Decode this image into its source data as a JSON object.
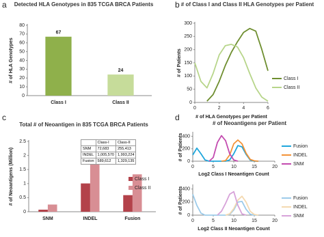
{
  "chart_data": [
    {
      "type": "bar",
      "panel": "a",
      "title": "Detected HLA Genotypes in 835 TCGA BRCA Patients",
      "ylabel": "# of HLA Genotypes",
      "categories": [
        "Class I",
        "Class II"
      ],
      "values": [
        67,
        24
      ],
      "colors": [
        "#8fb04b",
        "#c6dc9a"
      ],
      "data_labels": true,
      "ylim": [
        0,
        80
      ],
      "yticks": [
        0,
        10,
        20,
        30,
        40,
        50,
        60,
        70,
        80
      ]
    },
    {
      "type": "line",
      "panel": "b",
      "title": "# of Class I and Class II HLA Genotypes per Patient",
      "ylabel": "# of Patients",
      "xlabel": "# of HLA Genotypes per Patient",
      "x": [
        0,
        0.5,
        1,
        1.5,
        2,
        2.5,
        3,
        3.5,
        4,
        4.5,
        5,
        5.5,
        6
      ],
      "series": [
        {
          "name": "Class I",
          "color": "#6e8e2f",
          "values": [
            null,
            null,
            5,
            30,
            80,
            140,
            190,
            230,
            265,
            280,
            270,
            200,
            120
          ]
        },
        {
          "name": "Class II",
          "color": "#b7d58a",
          "values": [
            150,
            80,
            55,
            110,
            180,
            215,
            220,
            210,
            170,
            110,
            55,
            20,
            5
          ]
        }
      ],
      "xlim": [
        0,
        6
      ],
      "xticks": [
        0,
        2,
        4,
        6
      ],
      "ylim": [
        0,
        300
      ],
      "yticks": [
        0,
        50,
        100,
        150,
        200,
        250,
        300
      ],
      "legend": "right"
    },
    {
      "type": "groupbar",
      "panel": "c",
      "title": "Total # of Neoantigen in 835 TCGA BRCA Patients",
      "ylabel": "# of Neoantigens (Million)",
      "categories": [
        "SNM",
        "INDEL",
        "Fusion"
      ],
      "series": [
        {
          "name": "Class I",
          "color": "#b3424a",
          "values": [
            0.072683,
            1.00557,
            0.589612
          ]
        },
        {
          "name": "Class II",
          "color": "#d88e94",
          "values": [
            0.255413,
            1.993224,
            1.329135
          ]
        }
      ],
      "ylim": [
        0,
        2.5
      ],
      "yticks": [
        0,
        0.5,
        1,
        1.5,
        2,
        2.5
      ],
      "legend": "right",
      "table": {
        "columns": [
          "Class-I",
          "Class-II"
        ],
        "rows": [
          [
            "SNM",
            "72,683",
            "255,413"
          ],
          [
            "INDEL",
            "1,005,570",
            "1,993,224"
          ],
          [
            "Fusion",
            "589,612",
            "1,329,135"
          ]
        ]
      }
    },
    {
      "type": "line",
      "panel": "d",
      "title": "# of Neoantigens per Patient",
      "ylabel": "# of Patients",
      "xlabel": "Log2 Class I Neoantigen Count",
      "x": [
        0,
        1,
        2,
        3,
        4,
        5,
        6,
        7,
        8,
        9,
        10,
        11,
        12,
        13,
        14,
        15,
        16
      ],
      "series": [
        {
          "name": "Fusion",
          "color": "#1ea6dc",
          "values": [
            100,
            210,
            120,
            20,
            0,
            0,
            0,
            0,
            0,
            20,
            120,
            250,
            230,
            110,
            20,
            0,
            0
          ]
        },
        {
          "name": "INDEL",
          "color": "#f39237",
          "values": [
            null,
            null,
            null,
            null,
            null,
            null,
            null,
            0,
            10,
            100,
            280,
            340,
            280,
            130,
            30,
            5,
            0
          ]
        },
        {
          "name": "SNM",
          "color": "#c34aaf",
          "values": [
            null,
            null,
            null,
            null,
            0,
            60,
            300,
            410,
            330,
            120,
            20,
            0,
            null,
            null,
            null,
            null,
            null
          ]
        }
      ],
      "xlim": [
        0,
        20
      ],
      "xticks": [
        0,
        5,
        10,
        15,
        20
      ],
      "ylim": [
        0,
        450
      ],
      "yticks": [
        0,
        200,
        400
      ],
      "legend": "right"
    },
    {
      "type": "line",
      "ylabel": "# of Patients",
      "xlabel": "Log2 Class II Neoantigen Count",
      "x": [
        0,
        1,
        2,
        3,
        4,
        5,
        6,
        7,
        8,
        9,
        10,
        11,
        12,
        13,
        14,
        15,
        16
      ],
      "series": [
        {
          "name": "Fusion",
          "color": "#9ccbea",
          "values": [
            320,
            150,
            30,
            0,
            0,
            0,
            0,
            0,
            0,
            10,
            80,
            200,
            210,
            90,
            15,
            0,
            0
          ]
        },
        {
          "name": "INDEL",
          "color": "#f4d9b0",
          "values": [
            null,
            null,
            null,
            null,
            null,
            null,
            null,
            null,
            0,
            20,
            100,
            230,
            290,
            200,
            60,
            10,
            0
          ]
        },
        {
          "name": "SNM",
          "color": "#d7a2d9",
          "values": [
            null,
            null,
            null,
            null,
            null,
            null,
            0,
            60,
            180,
            320,
            360,
            150,
            20,
            0,
            null,
            null,
            null
          ]
        }
      ],
      "xlim": [
        0,
        20
      ],
      "xticks": [
        0,
        5,
        10,
        15,
        20
      ],
      "ylim": [
        0,
        450
      ],
      "yticks": [
        0,
        200,
        400
      ],
      "legend": "right"
    }
  ]
}
